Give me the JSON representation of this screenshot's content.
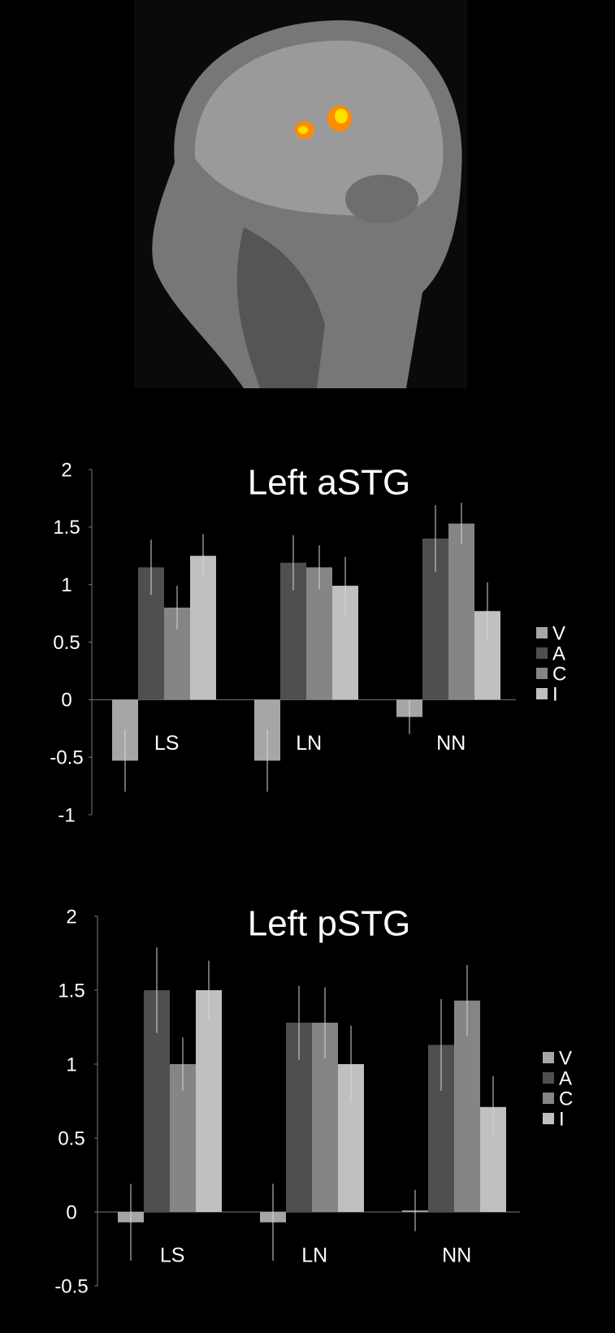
{
  "chart_data": [
    {
      "type": "bar",
      "title": "Left aSTG",
      "categories": [
        "LS",
        "LN",
        "NN"
      ],
      "series": [
        {
          "name": "V",
          "color": "#a6a6a6",
          "values": [
            -0.53,
            -0.53,
            -0.15
          ],
          "errors": [
            0.27,
            0.27,
            0.15
          ]
        },
        {
          "name": "A",
          "color": "#4f4f4f",
          "values": [
            1.15,
            1.19,
            1.4
          ],
          "errors": [
            0.24,
            0.24,
            0.29
          ]
        },
        {
          "name": "C",
          "color": "#858585",
          "values": [
            0.8,
            1.15,
            1.53
          ],
          "errors": [
            0.19,
            0.19,
            0.18
          ]
        },
        {
          "name": "I",
          "color": "#c0c0c0",
          "values": [
            1.25,
            0.99,
            0.77
          ],
          "errors": [
            0.19,
            0.25,
            0.25
          ]
        }
      ],
      "ylim": [
        -1,
        2
      ],
      "yticks": [
        -1,
        -0.5,
        0,
        0.5,
        1,
        1.5,
        2
      ],
      "legend": "right"
    },
    {
      "type": "bar",
      "title": "Left pSTG",
      "categories": [
        "LS",
        "LN",
        "NN"
      ],
      "series": [
        {
          "name": "V",
          "color": "#a6a6a6",
          "values": [
            -0.07,
            -0.07,
            0.01
          ],
          "errors": [
            0.26,
            0.26,
            0.14
          ]
        },
        {
          "name": "A",
          "color": "#4f4f4f",
          "values": [
            1.5,
            1.28,
            1.13
          ],
          "errors": [
            0.29,
            0.25,
            0.31
          ]
        },
        {
          "name": "C",
          "color": "#858585",
          "values": [
            1.0,
            1.28,
            1.43
          ],
          "errors": [
            0.18,
            0.24,
            0.24
          ]
        },
        {
          "name": "I",
          "color": "#c0c0c0",
          "values": [
            1.5,
            1.0,
            0.71
          ],
          "errors": [
            0.2,
            0.26,
            0.21
          ]
        }
      ],
      "ylim": [
        -0.5,
        2
      ],
      "yticks": [
        -0.5,
        0,
        0.5,
        1,
        1.5,
        2
      ],
      "legend": "right"
    }
  ]
}
